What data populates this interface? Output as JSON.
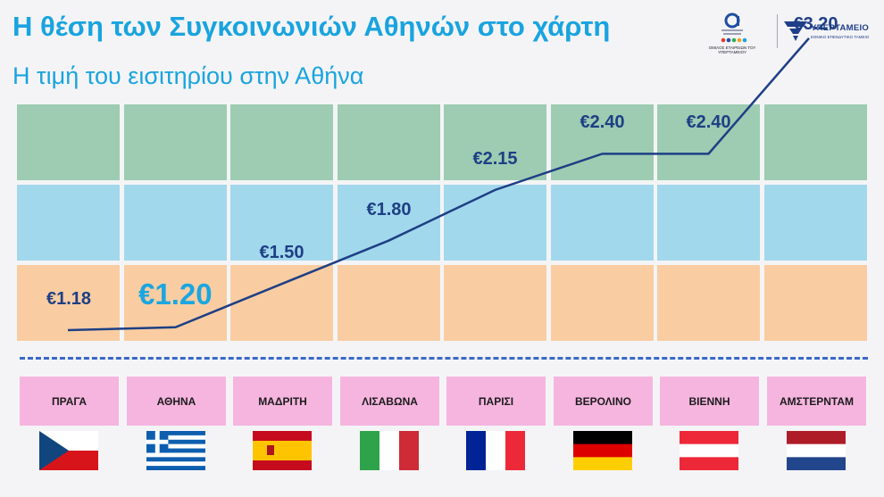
{
  "header": {
    "title": "Η θέση των Συγκοινωνιών Αθηνών στο χάρτη",
    "subtitle": "Η τιμή του εισιτηρίου στην Αθήνα"
  },
  "logos": {
    "left_caption": "ΟΜΙΛΟΣ ΕΤΑΙΡΕΙΩΝ ΤΟΥ ΥΠΕΡΤΑΜΕΙΟΥ",
    "right_name": "ΥΠΕΡΤΑΜΕΙΟ",
    "right_sub": "ΕΘΝΙΚΟ ΕΠΕΝΔΥΤΙΚΟ ΤΑΜΕΙΟ"
  },
  "colors": {
    "band_top": "#9dccb2",
    "band_mid": "#a2d8ec",
    "band_low": "#f9cda1",
    "line": "#1e3f85",
    "highlight": "#1ba6e1",
    "city_box": "#f6b5df"
  },
  "chart_data": {
    "type": "line",
    "categories": [
      "ΠΡΑΓΑ",
      "ΑΘΗΝΑ",
      "ΜΑΔΡΙΤΗ",
      "ΛΙΣΑΒΩΝΑ",
      "ΠΑΡΙΣΙ",
      "ΒΕΡΟΛΙΝΟ",
      "ΒΙΕΝΝΗ",
      "ΑΜΣΤΕΡΝΤΑΜ"
    ],
    "values": [
      1.18,
      1.2,
      1.5,
      1.8,
      2.15,
      2.4,
      2.4,
      3.2
    ],
    "labels": [
      "€1.18",
      "€1.20",
      "€1.50",
      "€1.80",
      "€2.15",
      "€2.40",
      "€2.40",
      "€3.20"
    ],
    "highlight_index": 1,
    "flags": [
      "czech-flag-icon",
      "greece-flag-icon",
      "spain-flag-icon",
      "italy-flag-icon",
      "france-flag-icon",
      "germany-flag-icon",
      "austria-flag-icon",
      "netherlands-flag-icon"
    ]
  }
}
